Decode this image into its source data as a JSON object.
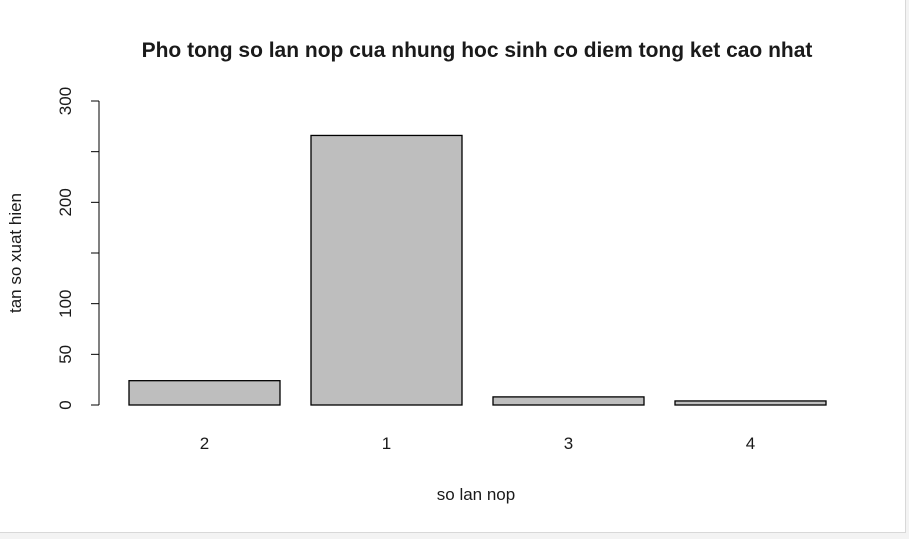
{
  "chart_data": {
    "type": "bar",
    "title": "Pho tong so lan nop cua nhung hoc sinh co diem tong ket cao nhat",
    "xlabel": "so lan nop",
    "ylabel": "tan so xuat hien",
    "categories": [
      "2",
      "1",
      "3",
      "4"
    ],
    "values": [
      24,
      266,
      8,
      4
    ],
    "ylim": [
      0,
      300
    ],
    "yticks": [
      0,
      50,
      100,
      150,
      200,
      250,
      300
    ],
    "ytick_labels": [
      "0",
      "50",
      "100",
      "",
      "200",
      "",
      "300"
    ],
    "bar_fill": "#bebebe",
    "bar_stroke": "#000000",
    "grid": false,
    "legend": "none"
  }
}
